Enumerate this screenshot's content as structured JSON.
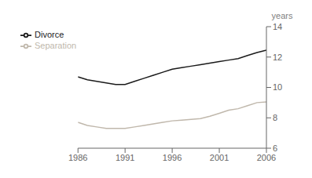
{
  "chart_data": {
    "type": "line",
    "ylabel": "years",
    "x": [
      1986,
      1987,
      1988,
      1989,
      1990,
      1991,
      1992,
      1993,
      1994,
      1995,
      1996,
      1997,
      1998,
      1999,
      2000,
      2001,
      2002,
      2003,
      2004,
      2005,
      2006
    ],
    "series": [
      {
        "name": "Divorce",
        "color": "#1a1a1a",
        "values": [
          10.7,
          10.5,
          10.4,
          10.3,
          10.2,
          10.2,
          10.4,
          10.6,
          10.8,
          11.0,
          11.2,
          11.3,
          11.4,
          11.5,
          11.6,
          11.7,
          11.8,
          11.9,
          12.1,
          12.3,
          12.45
        ]
      },
      {
        "name": "Separation",
        "color": "#c0b8ac",
        "values": [
          7.7,
          7.5,
          7.4,
          7.3,
          7.3,
          7.3,
          7.4,
          7.5,
          7.6,
          7.7,
          7.8,
          7.85,
          7.9,
          7.95,
          8.1,
          8.3,
          8.5,
          8.6,
          8.8,
          9.0,
          9.05
        ]
      }
    ],
    "xlim": [
      1986,
      2006
    ],
    "xticks": [
      1986,
      1991,
      1996,
      2001,
      2006
    ],
    "ylim": [
      6,
      14
    ],
    "yticks": [
      6,
      8,
      10,
      12,
      14
    ],
    "legend": "upper left",
    "grid": false
  }
}
